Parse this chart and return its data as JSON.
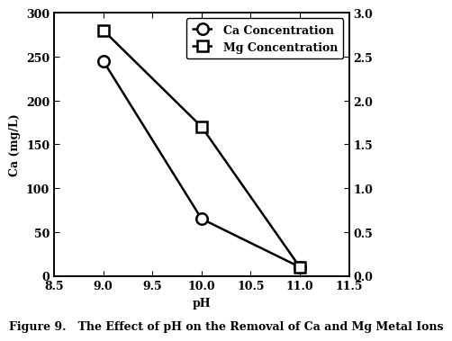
{
  "ca_ph": [
    9,
    10,
    11
  ],
  "ca_conc": [
    245,
    65,
    10
  ],
  "mg_ph": [
    9,
    10,
    11
  ],
  "mg_conc": [
    2.8,
    1.7,
    0.1
  ],
  "ca_ylabel": "Ca (mg/L)",
  "mg_ylabel": "",
  "xlabel": "pH",
  "xlim": [
    8.5,
    11.5
  ],
  "xticks": [
    8.5,
    9.0,
    9.5,
    10.0,
    10.5,
    11.0,
    11.5
  ],
  "ca_ylim": [
    0,
    300
  ],
  "ca_yticks": [
    0,
    50,
    100,
    150,
    200,
    250,
    300
  ],
  "mg_ylim": [
    0,
    3
  ],
  "mg_yticks": [
    0,
    0.5,
    1.0,
    1.5,
    2.0,
    2.5,
    3.0
  ],
  "legend_ca": "Ca Concentration",
  "legend_mg": "Mg Concentration",
  "caption": "Figure 9.   The Effect of pH on the Removal of Ca and Mg Metal Ions",
  "line_color": "black",
  "bg_color": "white",
  "label_fontsize": 9,
  "tick_fontsize": 9,
  "legend_fontsize": 9,
  "caption_fontsize": 9
}
